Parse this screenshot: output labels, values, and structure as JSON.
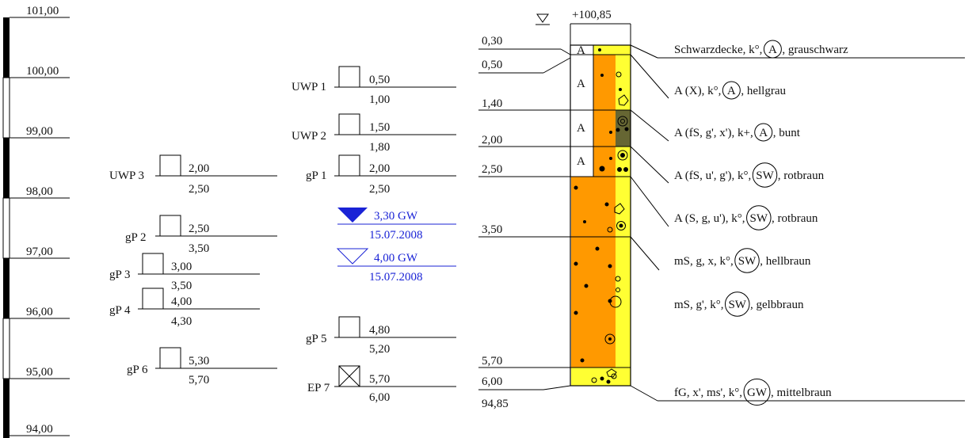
{
  "elevation_scale": {
    "labels": [
      "101,00",
      "100,00",
      "99,00",
      "98,00",
      "97,00",
      "96,00",
      "95,00",
      "94,00"
    ]
  },
  "samples": [
    {
      "id": "UWP 3",
      "top": "2,00",
      "bottom": "2,50",
      "marker": "box"
    },
    {
      "id": "gP 2",
      "top": "2,50",
      "bottom": "3,50",
      "marker": "box"
    },
    {
      "id": "gP 3",
      "top": "3,00",
      "bottom": "3,50",
      "marker": "box"
    },
    {
      "id": "gP 4",
      "top": "4,00",
      "bottom": "4,30",
      "marker": "box"
    },
    {
      "id": "gP 6",
      "top": "5,30",
      "bottom": "5,70",
      "marker": "box"
    },
    {
      "id": "UWP 1",
      "top": "0,50",
      "bottom": "1,00",
      "marker": "box"
    },
    {
      "id": "UWP 2",
      "top": "1,50",
      "bottom": "1,80",
      "marker": "box"
    },
    {
      "id": "gP 1",
      "top": "2,00",
      "bottom": "2,50",
      "marker": "box"
    },
    {
      "id": "gP 5",
      "top": "4,80",
      "bottom": "5,20",
      "marker": "box"
    },
    {
      "id": "EP 7",
      "top": "5,70",
      "bottom": "6,00",
      "marker": "crossed-box"
    }
  ],
  "groundwater": [
    {
      "depth": "3,30 GW",
      "date": "15.07.2008",
      "symbol": "filled-triangle"
    },
    {
      "depth": "4,00 GW",
      "date": "15.07.2008",
      "symbol": "open-triangle"
    }
  ],
  "borehole": {
    "top_elevation": "+100,85",
    "bottom_elevation": "94,85",
    "depth_labels": [
      "0,30",
      "0,50",
      "1,40",
      "2,00",
      "2,50",
      "3,50",
      "5,70",
      "6,00"
    ],
    "colors": {
      "orange": "#ff9900",
      "yellow": "#ffff33",
      "olive": "#666633",
      "line": "#000000",
      "blue": "#1a23d6"
    }
  },
  "layers": [
    {
      "pre": "Schwarzdecke, k°,",
      "symbol": "A",
      "post": "grauschwarz"
    },
    {
      "pre": "A (X), k°,",
      "symbol": "A",
      "post": "hellgrau"
    },
    {
      "pre": "A (fS, g', x'), k+,",
      "symbol": "A",
      "post": "bunt"
    },
    {
      "pre": "A (fS, u', g'), k°,",
      "symbol": "SW",
      "post": "rotbraun"
    },
    {
      "pre": "A (S, g, u'), k°,",
      "symbol": "SW",
      "post": "rotbraun"
    },
    {
      "pre": "mS, g, x, k°,",
      "symbol": "SW",
      "post": "hellbraun"
    },
    {
      "pre": "mS, g', k°,",
      "symbol": "SW",
      "post": "gelbbraun"
    },
    {
      "pre": "fG, x', ms', k°,",
      "symbol": "GW",
      "post": "mittelbraun"
    }
  ]
}
